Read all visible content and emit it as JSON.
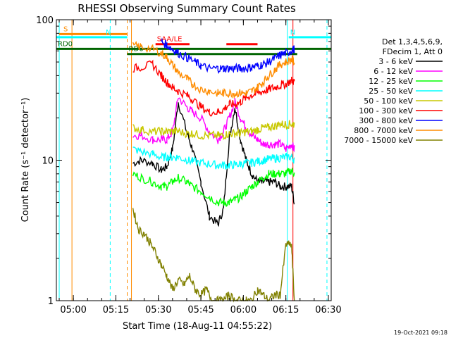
{
  "chart_data": {
    "type": "line",
    "title": "RHESSI Observing Summary Count Rates",
    "xlabel": "Start Time (18-Aug-11 04:55:22)",
    "ylabel": "Count Rate (s⁻¹ detector⁻¹)",
    "y_scale": "log",
    "ylim": [
      1,
      100
    ],
    "xlim_minutes": [
      -1,
      96
    ],
    "x_ticks": [
      {
        "label": "05:00",
        "minute": 5
      },
      {
        "label": "05:15",
        "minute": 20
      },
      {
        "label": "05:30",
        "minute": 35
      },
      {
        "label": "05:45",
        "minute": 50
      },
      {
        "label": "06:00",
        "minute": 65
      },
      {
        "label": "06:15",
        "minute": 80
      },
      {
        "label": "06:30",
        "minute": 95
      }
    ],
    "y_ticks": [
      {
        "label": "1",
        "value": 1
      },
      {
        "label": "10",
        "value": 10
      },
      {
        "label": "100",
        "value": 100
      }
    ],
    "legend_header": [
      "Det 1,3,4,5,6,9,",
      "FDecim 1, Att 0"
    ],
    "legend_placement": "right",
    "timestamp": "19-Oct-2021 09:18",
    "series": [
      {
        "name": "3 - 6 keV",
        "color": "#000000",
        "x": [
          26,
          29,
          33,
          36,
          38,
          40,
          42,
          45,
          47,
          50,
          53,
          56,
          58,
          60,
          62,
          64,
          66,
          68,
          70,
          72,
          74,
          76,
          78,
          80,
          82,
          83
        ],
        "y": [
          9.5,
          10,
          9.5,
          8.5,
          9,
          12,
          26,
          16,
          12,
          7,
          4,
          3.5,
          4.5,
          14,
          24,
          14,
          10,
          8,
          7,
          7,
          7,
          7,
          6.5,
          6.5,
          6.5,
          5
        ]
      },
      {
        "name": "6 - 12 keV",
        "color": "#ff00ff",
        "x": [
          26,
          29,
          33,
          36,
          38,
          40,
          42,
          45,
          47,
          50,
          53,
          56,
          58,
          60,
          62,
          64,
          66,
          68,
          70,
          72,
          74,
          76,
          78,
          80,
          82,
          83
        ],
        "y": [
          15,
          15,
          14,
          14,
          14,
          16,
          28,
          24,
          22,
          20,
          16,
          14,
          16,
          20,
          26,
          20,
          17,
          15,
          14,
          13,
          13,
          13,
          13,
          12,
          13,
          12
        ]
      },
      {
        "name": "12 - 25 keV",
        "color": "#00ff00",
        "x": [
          26,
          29,
          33,
          36,
          38,
          40,
          42,
          45,
          47,
          50,
          53,
          56,
          58,
          60,
          62,
          64,
          66,
          68,
          70,
          72,
          74,
          76,
          78,
          80,
          82,
          83
        ],
        "y": [
          8,
          7.5,
          7,
          6.5,
          6.5,
          7,
          7.5,
          7,
          6.5,
          6,
          5.5,
          5,
          5,
          5,
          5.2,
          5.5,
          6,
          6.5,
          7,
          7.5,
          8,
          8,
          8,
          8,
          8.5,
          8
        ]
      },
      {
        "name": "25 - 50 keV",
        "color": "#00ffff",
        "x": [
          26,
          29,
          33,
          36,
          38,
          40,
          42,
          45,
          47,
          50,
          53,
          56,
          58,
          60,
          62,
          64,
          66,
          68,
          70,
          72,
          74,
          76,
          78,
          80,
          82,
          83
        ],
        "y": [
          12,
          11.5,
          11,
          10.5,
          10.5,
          10.5,
          10.5,
          10,
          9.8,
          9.6,
          9.4,
          9.2,
          9.2,
          9.2,
          9.3,
          9.4,
          9.5,
          9.6,
          9.8,
          10,
          10.2,
          10.3,
          10.4,
          10.5,
          10.6,
          10
        ]
      },
      {
        "name": "50 - 100 keV",
        "color": "#c8c800",
        "x": [
          26,
          29,
          33,
          36,
          38,
          40,
          42,
          45,
          47,
          50,
          53,
          56,
          58,
          60,
          62,
          64,
          66,
          68,
          70,
          72,
          74,
          76,
          78,
          80,
          82,
          83
        ],
        "y": [
          17,
          16.5,
          16,
          16,
          16,
          16,
          16,
          15.5,
          15.5,
          15,
          15,
          15,
          15,
          15.5,
          15.5,
          15.5,
          16,
          16,
          16.5,
          17,
          17,
          17.5,
          18,
          18,
          18,
          18
        ]
      },
      {
        "name": "100 - 300 keV",
        "color": "#ff0000",
        "x": [
          26,
          29,
          33,
          36,
          38,
          40,
          42,
          45,
          47,
          50,
          53,
          56,
          58,
          60,
          62,
          64,
          66,
          68,
          70,
          72,
          74,
          76,
          78,
          80,
          82,
          83
        ],
        "y": [
          45,
          46,
          48,
          40,
          36,
          33,
          31,
          29,
          27,
          24,
          22,
          22,
          23,
          25,
          25,
          26,
          28,
          29,
          30,
          31,
          32,
          33,
          34,
          35,
          37,
          36
        ]
      },
      {
        "name": "300 - 800 keV",
        "color": "#0000ff",
        "x": [
          36,
          38,
          40,
          42,
          45,
          48,
          50,
          53,
          56,
          58,
          60,
          62,
          64,
          66,
          68,
          70,
          72,
          74,
          76,
          78,
          80,
          82,
          83
        ],
        "y": [
          70,
          66,
          62,
          58,
          54,
          50,
          47,
          45,
          45,
          45,
          45,
          45,
          45,
          45,
          46,
          47,
          48,
          50,
          53,
          56,
          58,
          60,
          62
        ]
      },
      {
        "name": "800 - 7000 keV",
        "color": "#ff8c00",
        "x": [
          26,
          29,
          33,
          36,
          38,
          40,
          42,
          45,
          47,
          50,
          53,
          56,
          58,
          60,
          62,
          64,
          66,
          68,
          70,
          72,
          74,
          76,
          78,
          80,
          82,
          83
        ],
        "y": [
          65,
          64,
          62,
          58,
          54,
          48,
          42,
          38,
          35,
          32,
          31,
          30,
          30,
          30,
          30,
          30,
          30,
          31,
          33,
          36,
          40,
          44,
          48,
          50,
          52,
          50
        ]
      },
      {
        "name": "7000 - 15000 keV",
        "color": "#808000",
        "x": [
          26,
          28,
          30,
          32,
          34,
          36,
          38,
          40,
          42,
          44,
          46,
          48,
          50,
          52,
          54,
          56,
          58,
          60,
          62,
          64,
          66,
          68,
          70,
          72,
          74,
          76,
          78,
          80,
          82,
          83
        ],
        "y": [
          4.5,
          3.2,
          3,
          2.6,
          2.2,
          1.8,
          1.5,
          1.2,
          1.4,
          1.3,
          1.5,
          1.2,
          1.1,
          1.2,
          1,
          1,
          1,
          1.1,
          1,
          1,
          1,
          1,
          1.2,
          1.1,
          1,
          1.1,
          1.1,
          2.5,
          2.5,
          1
        ]
      }
    ],
    "flags": [
      {
        "label": "S",
        "color": "#ff8c00",
        "x_start": 0,
        "x_end": 24,
        "value": 79
      },
      {
        "label": "N",
        "color": "#00ffff",
        "x_start": -1,
        "x_end": 24,
        "value": 75
      },
      {
        "label": "N",
        "color": "#00ffff",
        "x_start": 81,
        "x_end": 96,
        "value": 75
      },
      {
        "label": "SAA/LE",
        "color": "#ff0000",
        "x_start": 34,
        "x_end": 46,
        "value": 67
      },
      {
        "label": "",
        "color": "#ff0000",
        "x_start": 59,
        "x_end": 70,
        "value": 67
      },
      {
        "label": "RD0",
        "color": "#006400",
        "x_start": -1,
        "x_end": 96,
        "value": 62
      },
      {
        "label": "RD6",
        "color": "#006400",
        "x_start": 24,
        "x_end": 84,
        "value": 57
      }
    ],
    "verticals": [
      {
        "minute": 4.5,
        "color": "#ff8c00",
        "style": "solid"
      },
      {
        "minute": 0,
        "color": "#00ffff",
        "style": "solid"
      },
      {
        "minute": 18,
        "color": "#00ffff",
        "style": "dashed"
      },
      {
        "minute": 24,
        "color": "#ff8c00",
        "style": "dashed"
      },
      {
        "minute": 25.5,
        "color": "#ff8c00",
        "style": "solid"
      },
      {
        "minute": 80.5,
        "color": "#00ffff",
        "style": "solid"
      },
      {
        "minute": 82.5,
        "color": "#ff0000",
        "style": "solid"
      },
      {
        "minute": 94.5,
        "color": "#00ffff",
        "style": "dashed"
      }
    ]
  }
}
